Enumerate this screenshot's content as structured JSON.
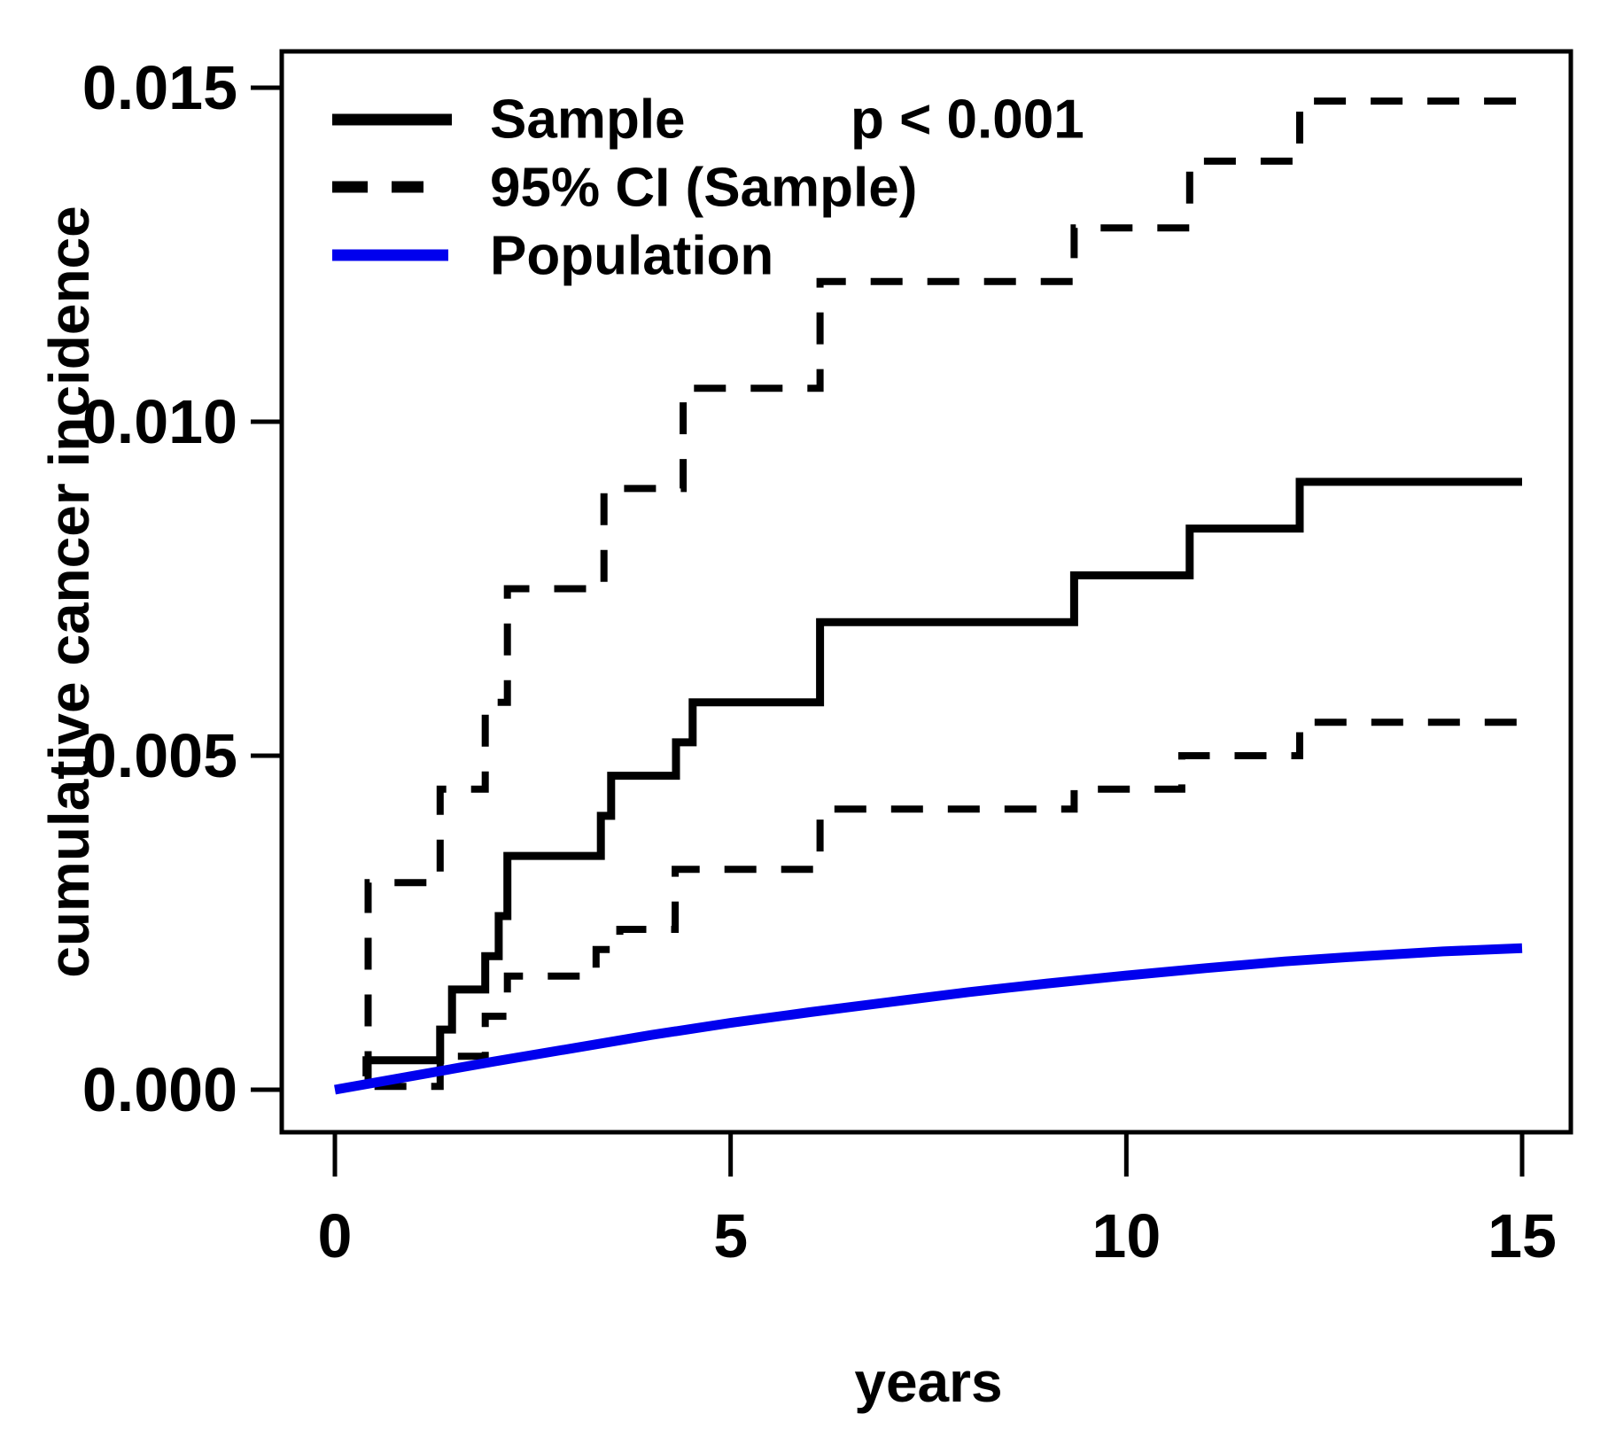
{
  "chart_data": {
    "type": "line",
    "subtype": "kaplan-meier-cumulative-incidence",
    "title": "",
    "xlabel": "years",
    "ylabel": "cumulative cancer incidence",
    "xlim": [
      0,
      15
    ],
    "ylim": [
      0,
      0.015
    ],
    "grid": false,
    "x_ticks": [
      {
        "v": 0,
        "label": "0"
      },
      {
        "v": 5,
        "label": "5"
      },
      {
        "v": 10,
        "label": "10"
      },
      {
        "v": 15,
        "label": "15"
      }
    ],
    "y_ticks": [
      {
        "v": 0.0,
        "label": "0.000"
      },
      {
        "v": 0.005,
        "label": "0.005"
      },
      {
        "v": 0.01,
        "label": "0.010"
      },
      {
        "v": 0.015,
        "label": "0.015"
      }
    ],
    "series": [
      {
        "name": "Sample",
        "type": "step",
        "line": "solid",
        "color": "#000000",
        "width": 9,
        "start": [
          0.4,
          0.0002
        ],
        "steps": [
          [
            0.4,
            0.00044
          ],
          [
            1.33,
            0.0009
          ],
          [
            1.48,
            0.0015
          ],
          [
            1.9,
            0.002
          ],
          [
            2.07,
            0.0026
          ],
          [
            2.18,
            0.0035
          ],
          [
            3.36,
            0.0041
          ],
          [
            3.49,
            0.0047
          ],
          [
            4.31,
            0.0052
          ],
          [
            4.52,
            0.0058
          ],
          [
            6.13,
            0.007
          ],
          [
            9.34,
            0.0077
          ],
          [
            10.8,
            0.0084
          ],
          [
            12.19,
            0.0091
          ]
        ],
        "end": 15
      },
      {
        "name": "95% CI upper (Sample)",
        "type": "step",
        "line": "dashed",
        "color": "#000000",
        "width": 8,
        "start": [
          0.42,
          0.0001
        ],
        "steps": [
          [
            0.42,
            0.0031
          ],
          [
            1.33,
            0.0045
          ],
          [
            1.9,
            0.0058
          ],
          [
            2.18,
            0.0075
          ],
          [
            3.4,
            0.009
          ],
          [
            4.4,
            0.0105
          ],
          [
            6.13,
            0.0121
          ],
          [
            9.34,
            0.0129
          ],
          [
            10.8,
            0.0139
          ],
          [
            12.19,
            0.0148
          ]
        ],
        "end": 15
      },
      {
        "name": "95% CI lower (Sample)",
        "type": "step",
        "line": "dashed",
        "color": "#000000",
        "width": 8,
        "start": [
          0.5,
          5e-05
        ],
        "steps": [
          [
            1.33,
            0.0005
          ],
          [
            1.9,
            0.0011
          ],
          [
            2.18,
            0.0017
          ],
          [
            3.3,
            0.0021
          ],
          [
            3.6,
            0.0024
          ],
          [
            4.3,
            0.0033
          ],
          [
            6.13,
            0.0042
          ],
          [
            9.34,
            0.0045
          ],
          [
            10.7,
            0.005
          ],
          [
            12.19,
            0.0055
          ]
        ],
        "end": 15
      },
      {
        "name": "Population",
        "type": "smooth",
        "line": "solid",
        "color": "#0000ee",
        "width": 11,
        "points": [
          [
            0,
            0.0
          ],
          [
            1,
            0.00021
          ],
          [
            2,
            0.00042
          ],
          [
            3,
            0.00062
          ],
          [
            4,
            0.00082
          ],
          [
            5,
            0.001
          ],
          [
            6,
            0.00116
          ],
          [
            7,
            0.00131
          ],
          [
            8,
            0.00146
          ],
          [
            9,
            0.00159
          ],
          [
            10,
            0.00171
          ],
          [
            11,
            0.00182
          ],
          [
            12,
            0.00192
          ],
          [
            13,
            0.002
          ],
          [
            14,
            0.00207
          ],
          [
            15,
            0.00212
          ]
        ]
      }
    ],
    "legend_position": "top-left-inside"
  },
  "legend": {
    "items": [
      {
        "label": "Sample",
        "line": "solid",
        "color": "#000000"
      },
      {
        "label": "95% CI (Sample)",
        "line": "dashed",
        "color": "#000000"
      },
      {
        "label": "Population",
        "line": "solid",
        "color": "#0000ee"
      }
    ],
    "p_value": "p < 0.001"
  },
  "colors": {
    "foreground": "#000000",
    "population_line": "#0000ee",
    "background": "#ffffff"
  }
}
